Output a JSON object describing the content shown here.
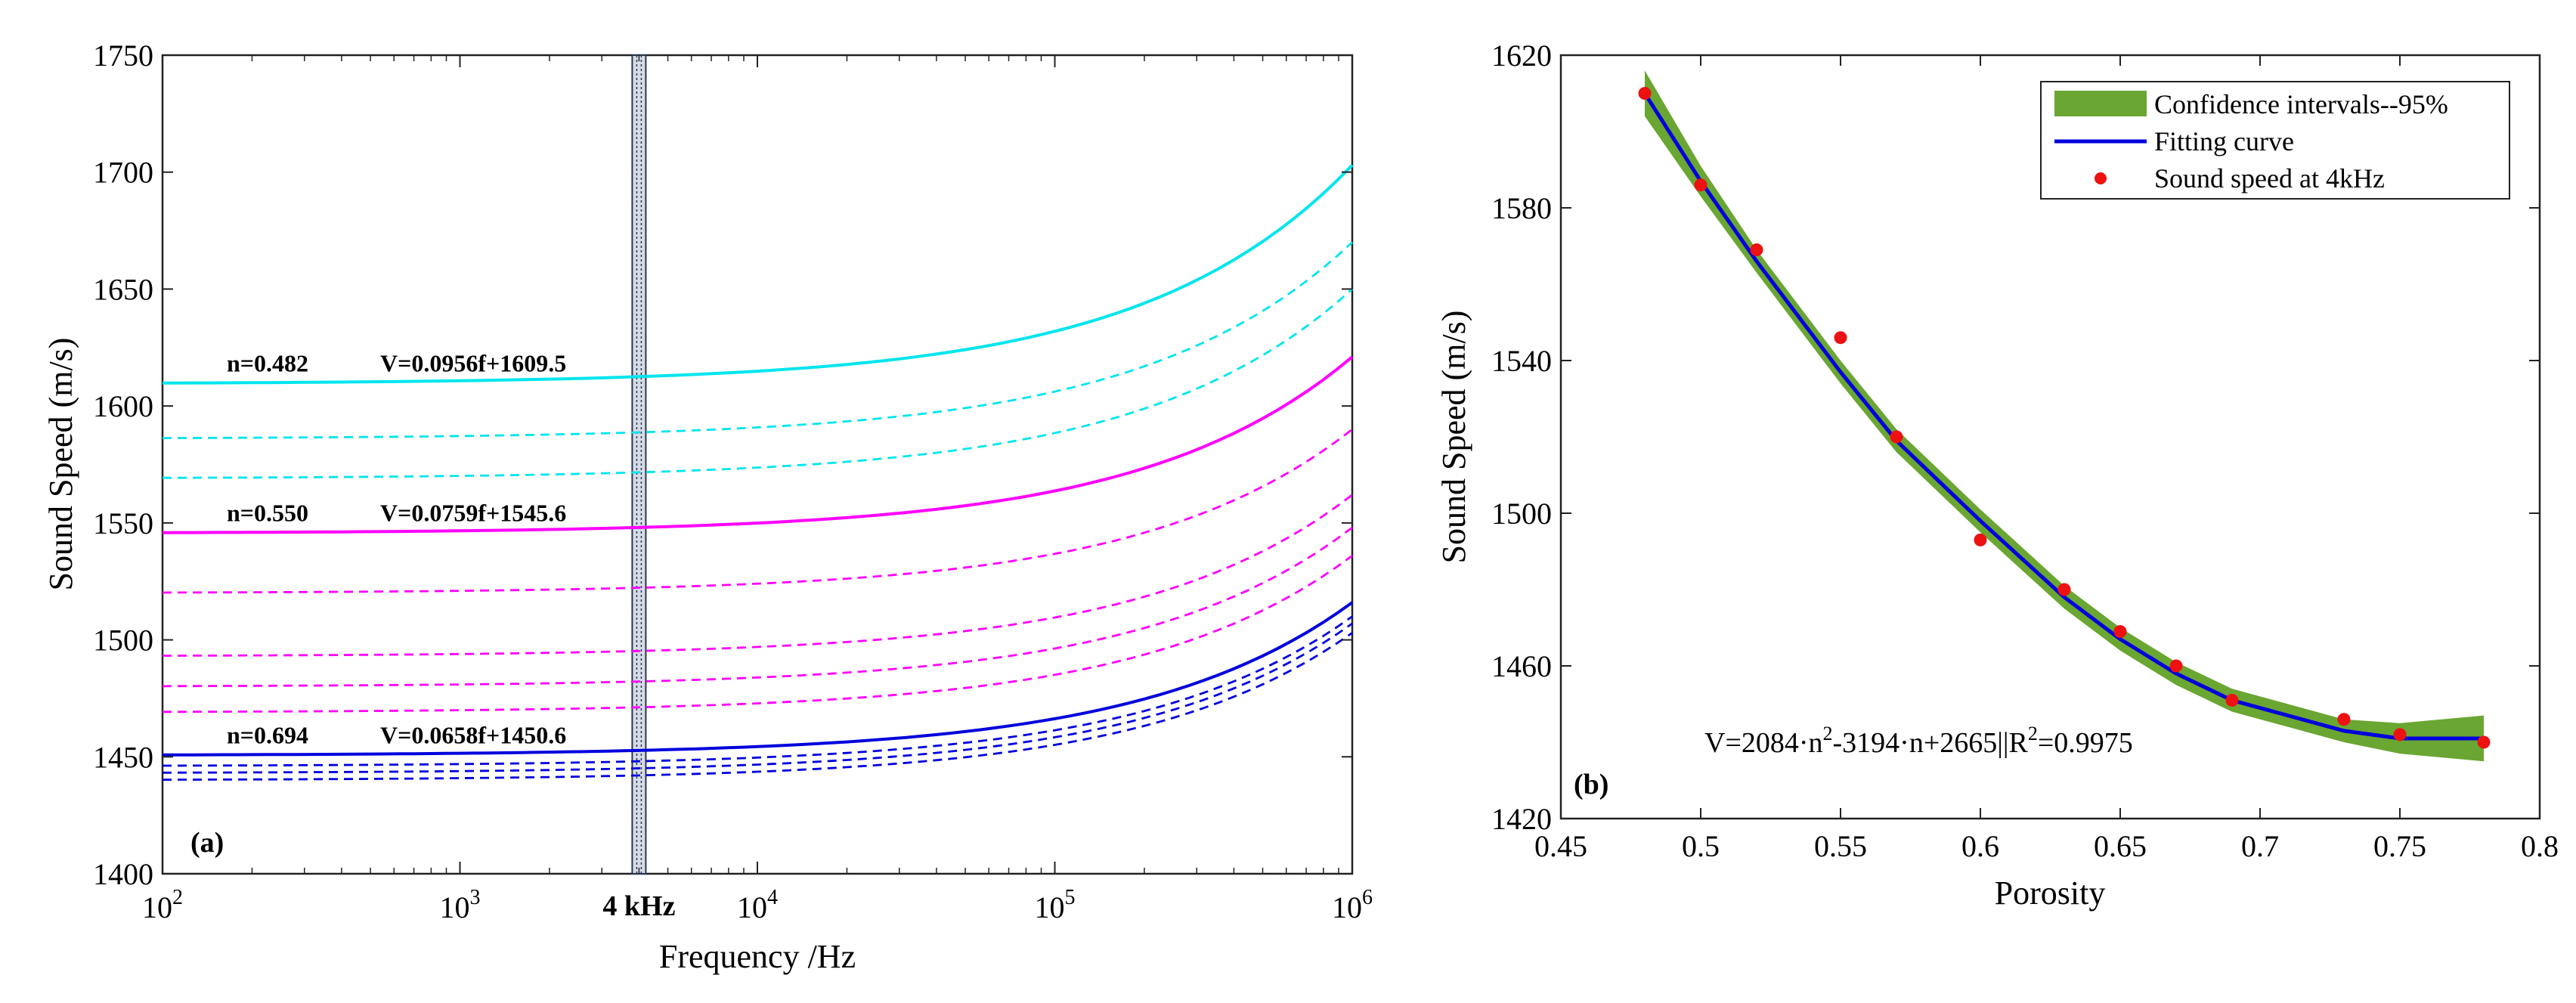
{
  "chart_data": [
    {
      "type": "line",
      "panel": "(a)",
      "xlabel": "Frequency /Hz",
      "ylabel": "Sound Speed (m/s)",
      "xscale": "log",
      "xlim": [
        100,
        1000000
      ],
      "ylim": [
        1400,
        1750
      ],
      "x_ticks": [
        {
          "value": 100,
          "base": "10",
          "exp": "2"
        },
        {
          "value": 1000,
          "base": "10",
          "exp": "3"
        },
        {
          "value": 10000,
          "base": "10",
          "exp": "4"
        },
        {
          "value": 100000,
          "base": "10",
          "exp": "5"
        },
        {
          "value": 1000000,
          "base": "10",
          "exp": "6"
        }
      ],
      "y_ticks": [
        1400,
        1450,
        1500,
        1550,
        1600,
        1650,
        1700,
        1750
      ],
      "marker_line": {
        "x": 4000,
        "label": "4 kHz"
      },
      "series": [
        {
          "name": "n=0.482",
          "color": "#00e5ee",
          "style": "solid",
          "v0": 1609.5,
          "v1": 1703
        },
        {
          "name": "cyan-2",
          "color": "#00e5ee",
          "style": "dashed",
          "v0": 1586,
          "v1": 1670
        },
        {
          "name": "cyan-3",
          "color": "#00e5ee",
          "style": "dashed",
          "v0": 1569,
          "v1": 1650
        },
        {
          "name": "n=0.550",
          "color": "#ff00ff",
          "style": "solid",
          "v0": 1545.6,
          "v1": 1621
        },
        {
          "name": "mag-2",
          "color": "#ff00ff",
          "style": "dashed",
          "v0": 1520,
          "v1": 1590
        },
        {
          "name": "mag-3",
          "color": "#ff00ff",
          "style": "dashed",
          "v0": 1493,
          "v1": 1562
        },
        {
          "name": "mag-4",
          "color": "#ff00ff",
          "style": "dashed",
          "v0": 1480,
          "v1": 1548
        },
        {
          "name": "mag-5",
          "color": "#ff00ff",
          "style": "dashed",
          "v0": 1469,
          "v1": 1536
        },
        {
          "name": "n=0.694",
          "color": "#0000dd",
          "style": "solid",
          "v0": 1450.6,
          "v1": 1516
        },
        {
          "name": "blue-2",
          "color": "#0000dd",
          "style": "dashed",
          "v0": 1446,
          "v1": 1510
        },
        {
          "name": "blue-3",
          "color": "#0000dd",
          "style": "dashed",
          "v0": 1443,
          "v1": 1507
        },
        {
          "name": "blue-4",
          "color": "#0000dd",
          "style": "dashed",
          "v0": 1440,
          "v1": 1503
        }
      ],
      "annotations": [
        {
          "n": "n=0.482",
          "eq": "V=0.0956f+1609.5",
          "y": 1609.5
        },
        {
          "n": "n=0.550",
          "eq": "V=0.0759f+1545.6",
          "y": 1545.6
        },
        {
          "n": "n=0.694",
          "eq": "V=0.0658f+1450.6",
          "y": 1450.6
        }
      ]
    },
    {
      "type": "scatter",
      "panel": "(b)",
      "xlabel": "Porosity",
      "ylabel": "Sound Speed (m/s)",
      "xlim": [
        0.45,
        0.8
      ],
      "ylim": [
        1420,
        1620
      ],
      "x_ticks": [
        "0.45",
        "0.5",
        "0.55",
        "0.6",
        "0.65",
        "0.7",
        "0.75",
        "0.8"
      ],
      "y_ticks": [
        1420,
        1460,
        1500,
        1540,
        1580,
        1620
      ],
      "points": {
        "name": "Sound speed at 4kHz",
        "color": "#ee1111",
        "x": [
          0.48,
          0.5,
          0.52,
          0.55,
          0.57,
          0.6,
          0.63,
          0.65,
          0.67,
          0.69,
          0.73,
          0.75,
          0.78
        ],
        "y": [
          1610,
          1586,
          1569,
          1546,
          1520,
          1493,
          1480,
          1469,
          1460,
          1451,
          1446,
          1442,
          1440
        ]
      },
      "fit": {
        "name": "Fitting curve",
        "color": "#0000dd",
        "x": [
          0.48,
          0.5,
          0.52,
          0.55,
          0.57,
          0.6,
          0.63,
          0.65,
          0.67,
          0.69,
          0.73,
          0.75,
          0.78
        ],
        "y": [
          1610,
          1587,
          1566,
          1537,
          1519,
          1498,
          1478,
          1467,
          1458,
          1451,
          1443,
          1441,
          1441
        ]
      },
      "ci": {
        "name": "Confidence intervals--95%",
        "color": "#6aa632",
        "upper": [
          1616,
          1591,
          1569,
          1540,
          1522,
          1501,
          1481,
          1470,
          1461,
          1454,
          1446,
          1445,
          1447
        ],
        "lower": [
          1604,
          1583,
          1563,
          1534,
          1516,
          1495,
          1475,
          1464,
          1455,
          1448,
          1440,
          1437,
          1435
        ]
      },
      "legend": [
        "Confidence intervals--95%",
        "Fitting curve",
        "Sound speed at 4kHz"
      ],
      "legend_position": "top-right",
      "equation": {
        "prefix": "V=2084·n",
        "sup1": "2",
        "middle": "-3194·n+2665||R",
        "sup2": "2",
        "suffix": "=0.9975"
      }
    }
  ]
}
